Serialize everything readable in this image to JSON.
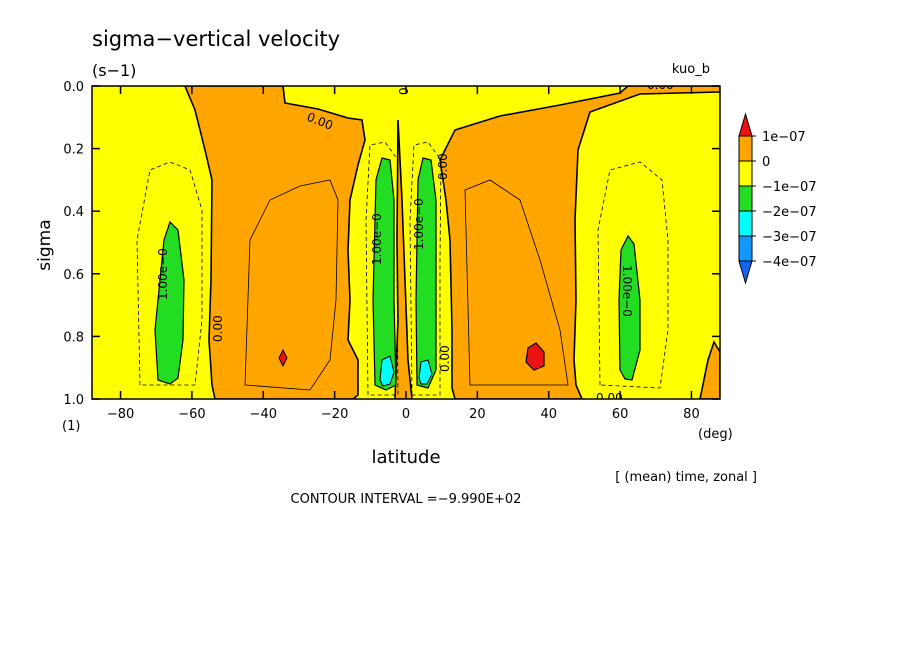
{
  "chart_data": {
    "type": "heatmap",
    "title": "sigma−vertical velocity",
    "units": "(s−1)",
    "experiment": "kuo_b",
    "xlabel": "latitude",
    "x_unit": "(deg)",
    "ylabel": "sigma",
    "y_unit": "(1)",
    "xlim": [
      -88,
      88
    ],
    "ylim": [
      0.0,
      1.0
    ],
    "y_reversed": true,
    "x_ticks": [
      -80,
      -60,
      -40,
      -20,
      0,
      20,
      40,
      60,
      80
    ],
    "x_tick_labels": [
      "−80",
      "−60",
      "−40",
      "−20",
      "0",
      "20",
      "40",
      "60",
      "80"
    ],
    "y_ticks": [
      0.0,
      0.2,
      0.4,
      0.6,
      0.8,
      1.0
    ],
    "y_tick_labels": [
      "0.0",
      "0.2",
      "0.4",
      "0.6",
      "0.8",
      "1.0"
    ],
    "colorbar": {
      "labels": [
        "1e−07",
        "0",
        "−1e−07",
        "−2e−07",
        "−3e−07",
        "−4e−07"
      ],
      "bins": [
        {
          "range": "> 1e-07",
          "color": "#ee1111"
        },
        {
          "range": "0 to 1e-07",
          "color": "#ffa500"
        },
        {
          "range": "-1e-07 to 0",
          "color": "#ffff00"
        },
        {
          "range": "-2e-07 to -1e-07",
          "color": "#22dd22"
        },
        {
          "range": "-3e-07 to -2e-07",
          "color": "#00ffff"
        },
        {
          "range": "-4e-07 to -3e-07",
          "color": "#1199ff"
        },
        {
          "range": "< -4e-07",
          "color": "#1166ee"
        }
      ]
    },
    "contour_labels": [
      "0.00",
      "0.00",
      "0.00",
      "0.00",
      "0.00",
      "0.00",
      "0.00",
      "1.00e−0",
      "1.00e−0",
      "1.00e−0",
      "1.00e−0",
      "1.00e−0",
      "1.00e−0"
    ],
    "footer": "[ (mean) time, zonal ]",
    "contour_interval": "CONTOUR INTERVAL =−9.990E+02",
    "colors": {
      "red": "#ee1111",
      "orange": "#ffa500",
      "yellow": "#ffff00",
      "green": "#22dd22",
      "cyan": "#00ffff"
    }
  }
}
